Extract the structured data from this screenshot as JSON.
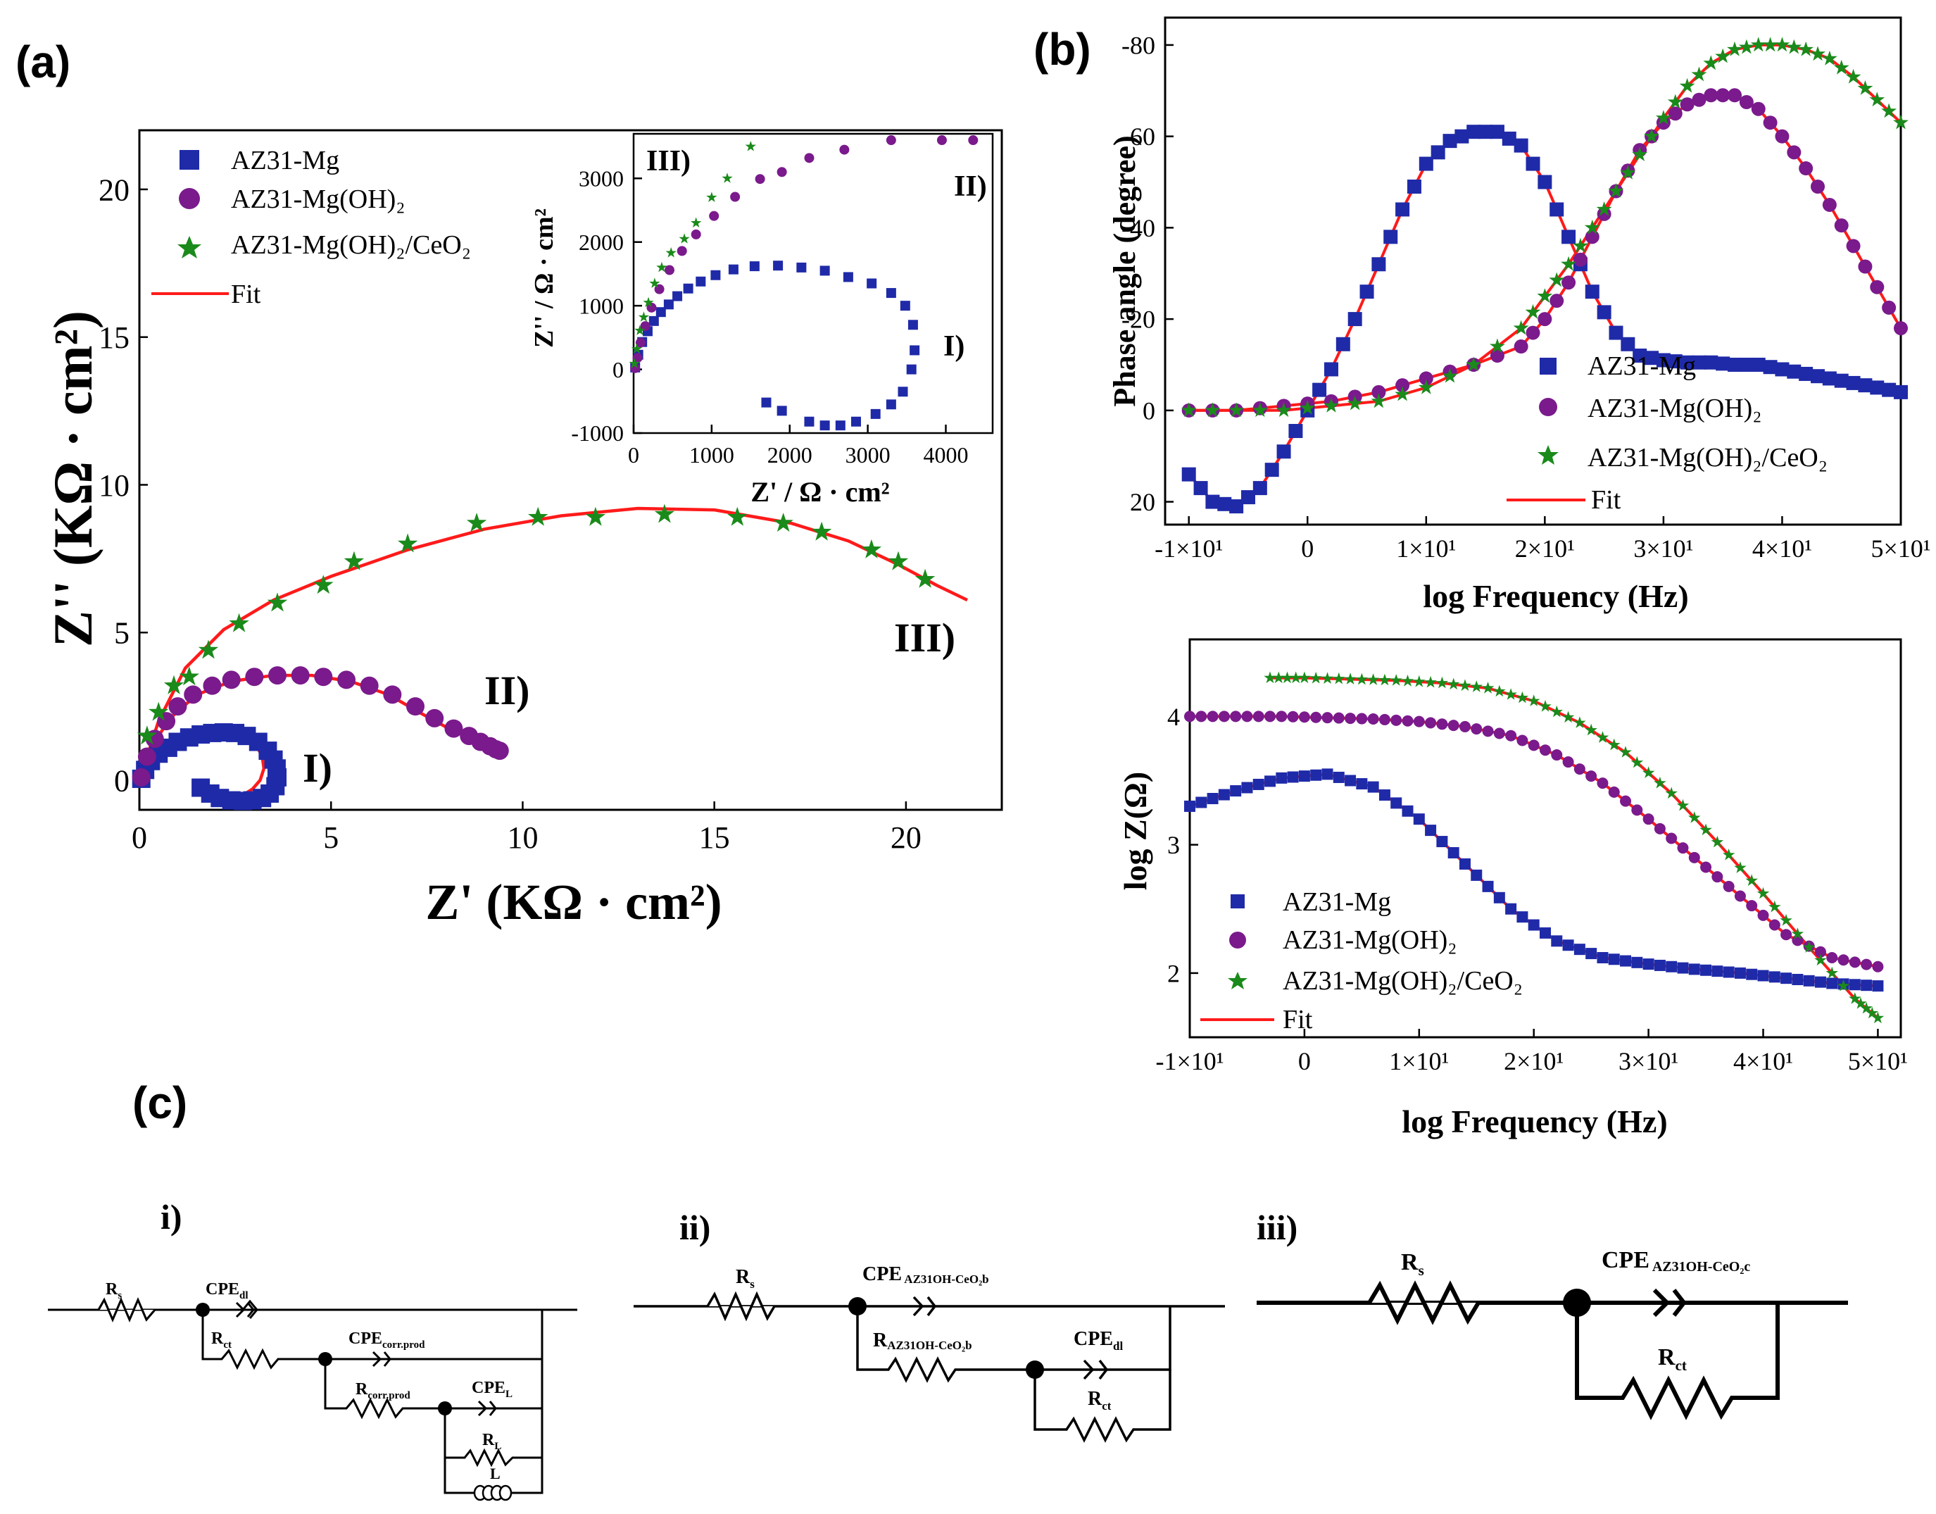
{
  "panels": {
    "a": "(a)",
    "b": "(b)",
    "c": "(c)"
  },
  "colors": {
    "mg": "#1f2aa8",
    "mgoh": "#7a1a8c",
    "ceo2": "#1a8a1a",
    "fit": "#ff1a1a",
    "axis": "#000000"
  },
  "chart_data": [
    {
      "id": "nyquist",
      "type": "scatter",
      "xlabel": "Z' (KΩ · cm²)",
      "ylabel": "Z'' (KΩ · cm²)",
      "xlim": [
        0,
        22.5
      ],
      "ylim": [
        -1,
        22
      ],
      "xticks": [
        "0",
        "5",
        "10",
        "15",
        "20"
      ],
      "yticks": [
        "0",
        "5",
        "10",
        "15",
        "20"
      ],
      "legend_position": "top-left",
      "legend": [
        "AZ31-Mg",
        "AZ31-Mg(OH)₂",
        "AZ31-Mg(OH)₂/CeO₂",
        "Fit"
      ],
      "annotations": [
        "I)",
        "II)",
        "III)"
      ],
      "series": [
        {
          "name": "AZ31-Mg",
          "marker": "square",
          "x": [
            0.05,
            0.15,
            0.3,
            0.5,
            0.75,
            1.0,
            1.3,
            1.6,
            1.9,
            2.2,
            2.5,
            2.8,
            3.1,
            3.35,
            3.5,
            3.58,
            3.6,
            3.55,
            3.4,
            3.2,
            2.95,
            2.7,
            2.4,
            2.1,
            1.85,
            1.6
          ],
          "y": [
            0.05,
            0.35,
            0.65,
            0.9,
            1.1,
            1.3,
            1.45,
            1.55,
            1.6,
            1.62,
            1.6,
            1.5,
            1.3,
            1.0,
            0.7,
            0.4,
            0.1,
            -0.2,
            -0.45,
            -0.6,
            -0.68,
            -0.7,
            -0.68,
            -0.6,
            -0.45,
            -0.25
          ]
        },
        {
          "name": "AZ31-Mg(OH)₂",
          "marker": "circle",
          "x": [
            0.05,
            0.2,
            0.4,
            0.7,
            1.0,
            1.4,
            1.9,
            2.4,
            3.0,
            3.6,
            4.2,
            4.8,
            5.4,
            6.0,
            6.6,
            7.2,
            7.7,
            8.2,
            8.6,
            8.9,
            9.15,
            9.3,
            9.4
          ],
          "y": [
            0.1,
            0.8,
            1.4,
            2.0,
            2.5,
            2.9,
            3.2,
            3.4,
            3.5,
            3.55,
            3.55,
            3.5,
            3.4,
            3.2,
            2.9,
            2.5,
            2.1,
            1.75,
            1.5,
            1.3,
            1.15,
            1.05,
            1.0
          ]
        },
        {
          "name": "AZ31-Mg(OH)₂/CeO₂",
          "marker": "star",
          "x": [
            0.2,
            0.5,
            0.9,
            1.3,
            1.8,
            2.6,
            3.6,
            4.8,
            5.6,
            7.0,
            8.8,
            10.4,
            11.9,
            13.7,
            15.6,
            16.8,
            17.8,
            19.1,
            19.8,
            20.5
          ],
          "y": [
            1.5,
            2.3,
            3.2,
            3.5,
            4.4,
            5.3,
            6.0,
            6.6,
            7.4,
            8.0,
            8.7,
            8.9,
            8.9,
            9.0,
            8.9,
            8.7,
            8.4,
            7.8,
            7.4,
            6.8
          ]
        }
      ],
      "fits": {
        "AZ31-Mg": {
          "x": [
            0.02,
            0.2,
            0.5,
            0.9,
            1.4,
            2.0,
            2.6,
            3.0,
            3.2,
            3.25,
            3.15,
            2.95,
            2.7,
            2.45,
            2.2
          ],
          "y": [
            0.0,
            0.5,
            0.95,
            1.3,
            1.52,
            1.6,
            1.5,
            1.25,
            0.85,
            0.4,
            0.0,
            -0.3,
            -0.5,
            -0.6,
            -0.62
          ]
        },
        "AZ31-Mg(OH)₂": {
          "x": [
            0.0,
            0.3,
            0.8,
            1.5,
            2.4,
            3.5,
            4.5,
            5.5,
            6.5,
            7.3,
            8.0,
            8.6,
            9.0,
            9.3,
            9.45
          ],
          "y": [
            0.0,
            1.1,
            2.1,
            2.9,
            3.35,
            3.55,
            3.55,
            3.35,
            2.9,
            2.3,
            1.8,
            1.45,
            1.25,
            1.1,
            1.05
          ]
        },
        "AZ31-Mg(OH)₂/CeO₂": {
          "x": [
            0.0,
            0.5,
            1.2,
            2.2,
            3.5,
            5.0,
            7.0,
            9.0,
            11.0,
            13.0,
            15.0,
            17.0,
            18.5,
            19.8,
            20.8,
            21.6
          ],
          "y": [
            0.0,
            2.0,
            3.8,
            5.1,
            6.1,
            6.9,
            7.8,
            8.5,
            8.95,
            9.2,
            9.15,
            8.7,
            8.1,
            7.3,
            6.6,
            6.1
          ]
        }
      },
      "inset": {
        "xlabel": "Z' / Ω · cm²",
        "ylabel": "Z'' / Ω · cm²",
        "xlim": [
          0,
          4600
        ],
        "ylim": [
          -1000,
          3700
        ],
        "xticks": [
          "0",
          "1000",
          "2000",
          "3000",
          "4000"
        ],
        "yticks": [
          "-1000",
          "0",
          "1000",
          "2000",
          "3000"
        ],
        "annotations": [
          "III)",
          "II)",
          "I)"
        ],
        "series": [
          {
            "name": "AZ31-Mg",
            "x": [
              20,
              60,
              110,
              180,
              260,
              350,
              450,
              560,
              700,
              860,
              1050,
              1280,
              1550,
              1850,
              2150,
              2450,
              2750,
              3050,
              3300,
              3480,
              3580,
              3600,
              3560,
              3450,
              3300,
              3100,
              2850,
              2650,
              2450,
              2250,
              1900,
              1700
            ],
            "y": [
              30,
              230,
              430,
              600,
              760,
              900,
              1020,
              1150,
              1270,
              1380,
              1480,
              1570,
              1620,
              1630,
              1600,
              1550,
              1450,
              1350,
              1200,
              1000,
              700,
              300,
              0,
              -350,
              -550,
              -700,
              -820,
              -880,
              -880,
              -820,
              -650,
              -520
            ]
          },
          {
            "name": "AZ31-Mg(OH)₂",
            "x": [
              20,
              50,
              90,
              150,
              230,
              330,
              460,
              620,
              800,
              1030,
              1300,
              1620,
              1900,
              2250,
              2700,
              3300,
              3950,
              4350
            ],
            "y": [
              20,
              180,
              420,
              680,
              970,
              1260,
              1560,
              1860,
              2120,
              2410,
              2710,
              2990,
              3100,
              3320,
              3450,
              3600,
              3600,
              3600
            ]
          },
          {
            "name": "AZ31-Mg(OH)₂/CeO₂",
            "x": [
              10,
              40,
              80,
              130,
              190,
              270,
              360,
              480,
              650,
              800,
              1000,
              1200,
              1500
            ],
            "y": [
              90,
              320,
              610,
              820,
              1050,
              1350,
              1600,
              1830,
              2050,
              2300,
              2700,
              3000,
              3500
            ]
          }
        ]
      }
    },
    {
      "id": "phase",
      "type": "line",
      "xlabel": "log Frequency (Hz)",
      "ylabel": "Phase angle (degree)",
      "xlim": [
        -12,
        50
      ],
      "ylim": [
        25,
        -86
      ],
      "xticks": [
        "-1×10¹",
        "0",
        "1×10¹",
        "2×10¹",
        "3×10¹",
        "4×10¹",
        "5×10¹"
      ],
      "yticks": [
        "-80",
        "-60",
        "-40",
        "-20",
        "0",
        "20"
      ],
      "legend_position": "bottom-right",
      "legend": [
        "AZ31-Mg",
        "AZ31-Mg(OH)₂",
        "AZ31-Mg(OH)₂/CeO₂",
        "Fit"
      ],
      "series": [
        {
          "name": "AZ31-Mg",
          "marker": "square",
          "x": [
            -10,
            -8,
            -6,
            -4,
            -2,
            0,
            2,
            4,
            6,
            8,
            10,
            12,
            14,
            16,
            18,
            20,
            22,
            24,
            26,
            28,
            30,
            32,
            34,
            36,
            38,
            40,
            42,
            44,
            46,
            48,
            50
          ],
          "y": [
            14,
            20,
            21,
            17,
            9,
            0,
            -9,
            -20,
            -32,
            -44,
            -54,
            -59,
            -61,
            -61,
            -58,
            -50,
            -38,
            -26,
            -17,
            -12,
            -11,
            -10.5,
            -10.5,
            -10,
            -10,
            -9,
            -8,
            -7,
            -6,
            -5,
            -4
          ]
        },
        {
          "name": "AZ31-Mg(OH)₂",
          "marker": "circle",
          "x": [
            -10,
            -6,
            -2,
            2,
            6,
            10,
            14,
            18,
            20,
            22,
            24,
            26,
            28,
            30,
            32,
            34,
            36,
            38,
            40,
            42,
            44,
            46,
            48,
            50
          ],
          "y": [
            0,
            0,
            -1,
            -2,
            -4,
            -7,
            -10,
            -14,
            -20,
            -28,
            -38,
            -48,
            -57,
            -63,
            -67,
            -69,
            -69,
            -66,
            -60,
            -53,
            -45,
            -36,
            -27,
            -18
          ]
        },
        {
          "name": "AZ31-Mg(OH)₂/CeO₂",
          "marker": "star",
          "x": [
            -10,
            -6,
            -2,
            2,
            6,
            10,
            14,
            18,
            20,
            22,
            24,
            26,
            28,
            30,
            32,
            34,
            36,
            38,
            40,
            42,
            44,
            46,
            48,
            50
          ],
          "y": [
            0,
            0,
            0,
            -1,
            -2,
            -5,
            -10,
            -18,
            -25,
            -32,
            -40,
            -48,
            -56,
            -64,
            -71,
            -76,
            -79,
            -80,
            -80,
            -79,
            -77,
            -73,
            -68,
            -63
          ]
        }
      ]
    },
    {
      "id": "modulus",
      "type": "line",
      "xlabel": "log Frequency (Hz)",
      "ylabel": "log Z(Ω)",
      "xlim": [
        -10,
        52
      ],
      "ylim": [
        1.5,
        4.6
      ],
      "xticks": [
        "-1×10¹",
        "0",
        "1×10¹",
        "2×10¹",
        "3×10¹",
        "4×10¹",
        "5×10¹"
      ],
      "yticks": [
        "4",
        "3",
        "2"
      ],
      "legend_position": "bottom-left",
      "legend": [
        "AZ31-Mg",
        "AZ31-Mg(OH)₂",
        "AZ31-Mg(OH)₂/CeO₂",
        "Fit"
      ],
      "series": [
        {
          "name": "AZ31-Mg",
          "marker": "square",
          "x": [
            -10,
            -6,
            -2,
            2,
            6,
            10,
            14,
            18,
            22,
            26,
            30,
            34,
            38,
            42,
            46,
            50
          ],
          "y": [
            3.3,
            3.42,
            3.52,
            3.55,
            3.45,
            3.2,
            2.85,
            2.5,
            2.25,
            2.12,
            2.07,
            2.03,
            2.0,
            1.96,
            1.92,
            1.9
          ]
        },
        {
          "name": "AZ31-Mg(OH)₂",
          "marker": "circle",
          "x": [
            -10,
            -6,
            -2,
            2,
            6,
            10,
            14,
            18,
            22,
            26,
            30,
            34,
            38,
            42,
            46,
            50
          ],
          "y": [
            4.0,
            4.0,
            4.0,
            3.99,
            3.98,
            3.96,
            3.92,
            3.85,
            3.7,
            3.48,
            3.2,
            2.9,
            2.6,
            2.3,
            2.12,
            2.05
          ]
        },
        {
          "name": "AZ31-Mg(OH)₂/CeO₂",
          "marker": "star",
          "x": [
            -3,
            0,
            4,
            8,
            12,
            16,
            20,
            24,
            28,
            32,
            36,
            40,
            44,
            48,
            50
          ],
          "y": [
            4.3,
            4.3,
            4.29,
            4.28,
            4.26,
            4.22,
            4.12,
            3.95,
            3.72,
            3.4,
            3.02,
            2.62,
            2.2,
            1.8,
            1.65
          ]
        }
      ]
    }
  ],
  "circuits": {
    "i": {
      "label": "i)",
      "parts": [
        "Rs",
        "CPEdl",
        "Rct",
        "CPEcorr.prod",
        "Rcorr.prod",
        "CPEL",
        "RL",
        "L"
      ]
    },
    "ii": {
      "label": "ii)",
      "parts": [
        "Rs",
        "CPE AZ31OH-CeO2b",
        "RAZ31OH-CeO2b",
        "CPEdl",
        "Rct"
      ]
    },
    "iii": {
      "label": "iii)",
      "parts": [
        "Rs",
        "CPE AZ31OH-CeO2c",
        "Rct"
      ]
    }
  }
}
